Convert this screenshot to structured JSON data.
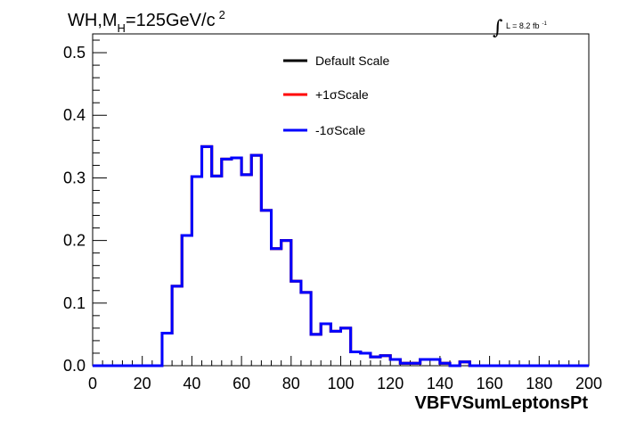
{
  "title": {
    "main": "WH,M",
    "subscript": "H",
    "value": "=125GeV/c",
    "superscript": "2"
  },
  "luminosity": {
    "integral_symbol": "∫",
    "text": "L = 8.2 fb",
    "superscript": "-1"
  },
  "chart_data": {
    "type": "line",
    "xlabel": "VBFVSumLeptonsPt",
    "ylabel": "",
    "xlim": [
      0,
      200
    ],
    "ylim": [
      0,
      0.53
    ],
    "x_ticks": [
      "0",
      "20",
      "40",
      "60",
      "80",
      "100",
      "120",
      "140",
      "160",
      "180",
      "200"
    ],
    "y_ticks": [
      "0.0",
      "0.1",
      "0.2",
      "0.3",
      "0.4",
      "0.5"
    ],
    "y_tick_values": [
      0,
      0.1,
      0.2,
      0.3,
      0.4,
      0.5
    ],
    "bin_edges": [
      0,
      4,
      8,
      12,
      16,
      20,
      24,
      28,
      32,
      36,
      40,
      44,
      48,
      52,
      56,
      60,
      64,
      68,
      72,
      76,
      80,
      84,
      88,
      92,
      96,
      100,
      104,
      108,
      112,
      116,
      120,
      124,
      128,
      132,
      136,
      140,
      144,
      148,
      152,
      156,
      160,
      164,
      168,
      172,
      176,
      180,
      184,
      188,
      192,
      196,
      200
    ],
    "legend": [
      {
        "name": "Default Scale",
        "color": "#000000"
      },
      {
        "name": "+1σScale",
        "color": "#ff0000"
      },
      {
        "name": "-1σScale",
        "color": "#0000ff"
      }
    ],
    "legend_position": "top-center",
    "series": [
      {
        "name": "Default Scale",
        "color": "#000000",
        "values": [
          0,
          0,
          0,
          0,
          0,
          0,
          0,
          0.052,
          0.127,
          0.208,
          0.302,
          0.35,
          0.303,
          0.33,
          0.332,
          0.305,
          0.336,
          0.248,
          0.187,
          0.2,
          0.135,
          0.117,
          0.05,
          0.067,
          0.055,
          0.06,
          0.022,
          0.02,
          0.014,
          0.016,
          0.01,
          0.004,
          0.004,
          0.01,
          0.01,
          0.004,
          0,
          0.006,
          0,
          0,
          0,
          0,
          0,
          0,
          0,
          0,
          0,
          0,
          0,
          0
        ]
      },
      {
        "name": "+1σScale",
        "color": "#ff0000",
        "values": [
          0,
          0,
          0,
          0,
          0,
          0,
          0,
          0.052,
          0.127,
          0.208,
          0.302,
          0.35,
          0.303,
          0.33,
          0.332,
          0.305,
          0.336,
          0.248,
          0.187,
          0.2,
          0.135,
          0.117,
          0.05,
          0.067,
          0.055,
          0.06,
          0.022,
          0.02,
          0.014,
          0.016,
          0.01,
          0.004,
          0.004,
          0.01,
          0.01,
          0.004,
          0,
          0.006,
          0,
          0,
          0,
          0,
          0,
          0,
          0,
          0,
          0,
          0,
          0,
          0
        ]
      },
      {
        "name": "-1σScale",
        "color": "#0000ff",
        "values": [
          0,
          0,
          0,
          0,
          0,
          0,
          0,
          0.052,
          0.127,
          0.208,
          0.302,
          0.35,
          0.303,
          0.33,
          0.332,
          0.305,
          0.336,
          0.248,
          0.187,
          0.2,
          0.135,
          0.117,
          0.05,
          0.067,
          0.055,
          0.06,
          0.022,
          0.02,
          0.014,
          0.016,
          0.01,
          0.004,
          0.004,
          0.01,
          0.01,
          0.004,
          0,
          0.006,
          0,
          0,
          0,
          0,
          0,
          0,
          0,
          0,
          0,
          0,
          0,
          0
        ]
      }
    ],
    "grid": false
  }
}
